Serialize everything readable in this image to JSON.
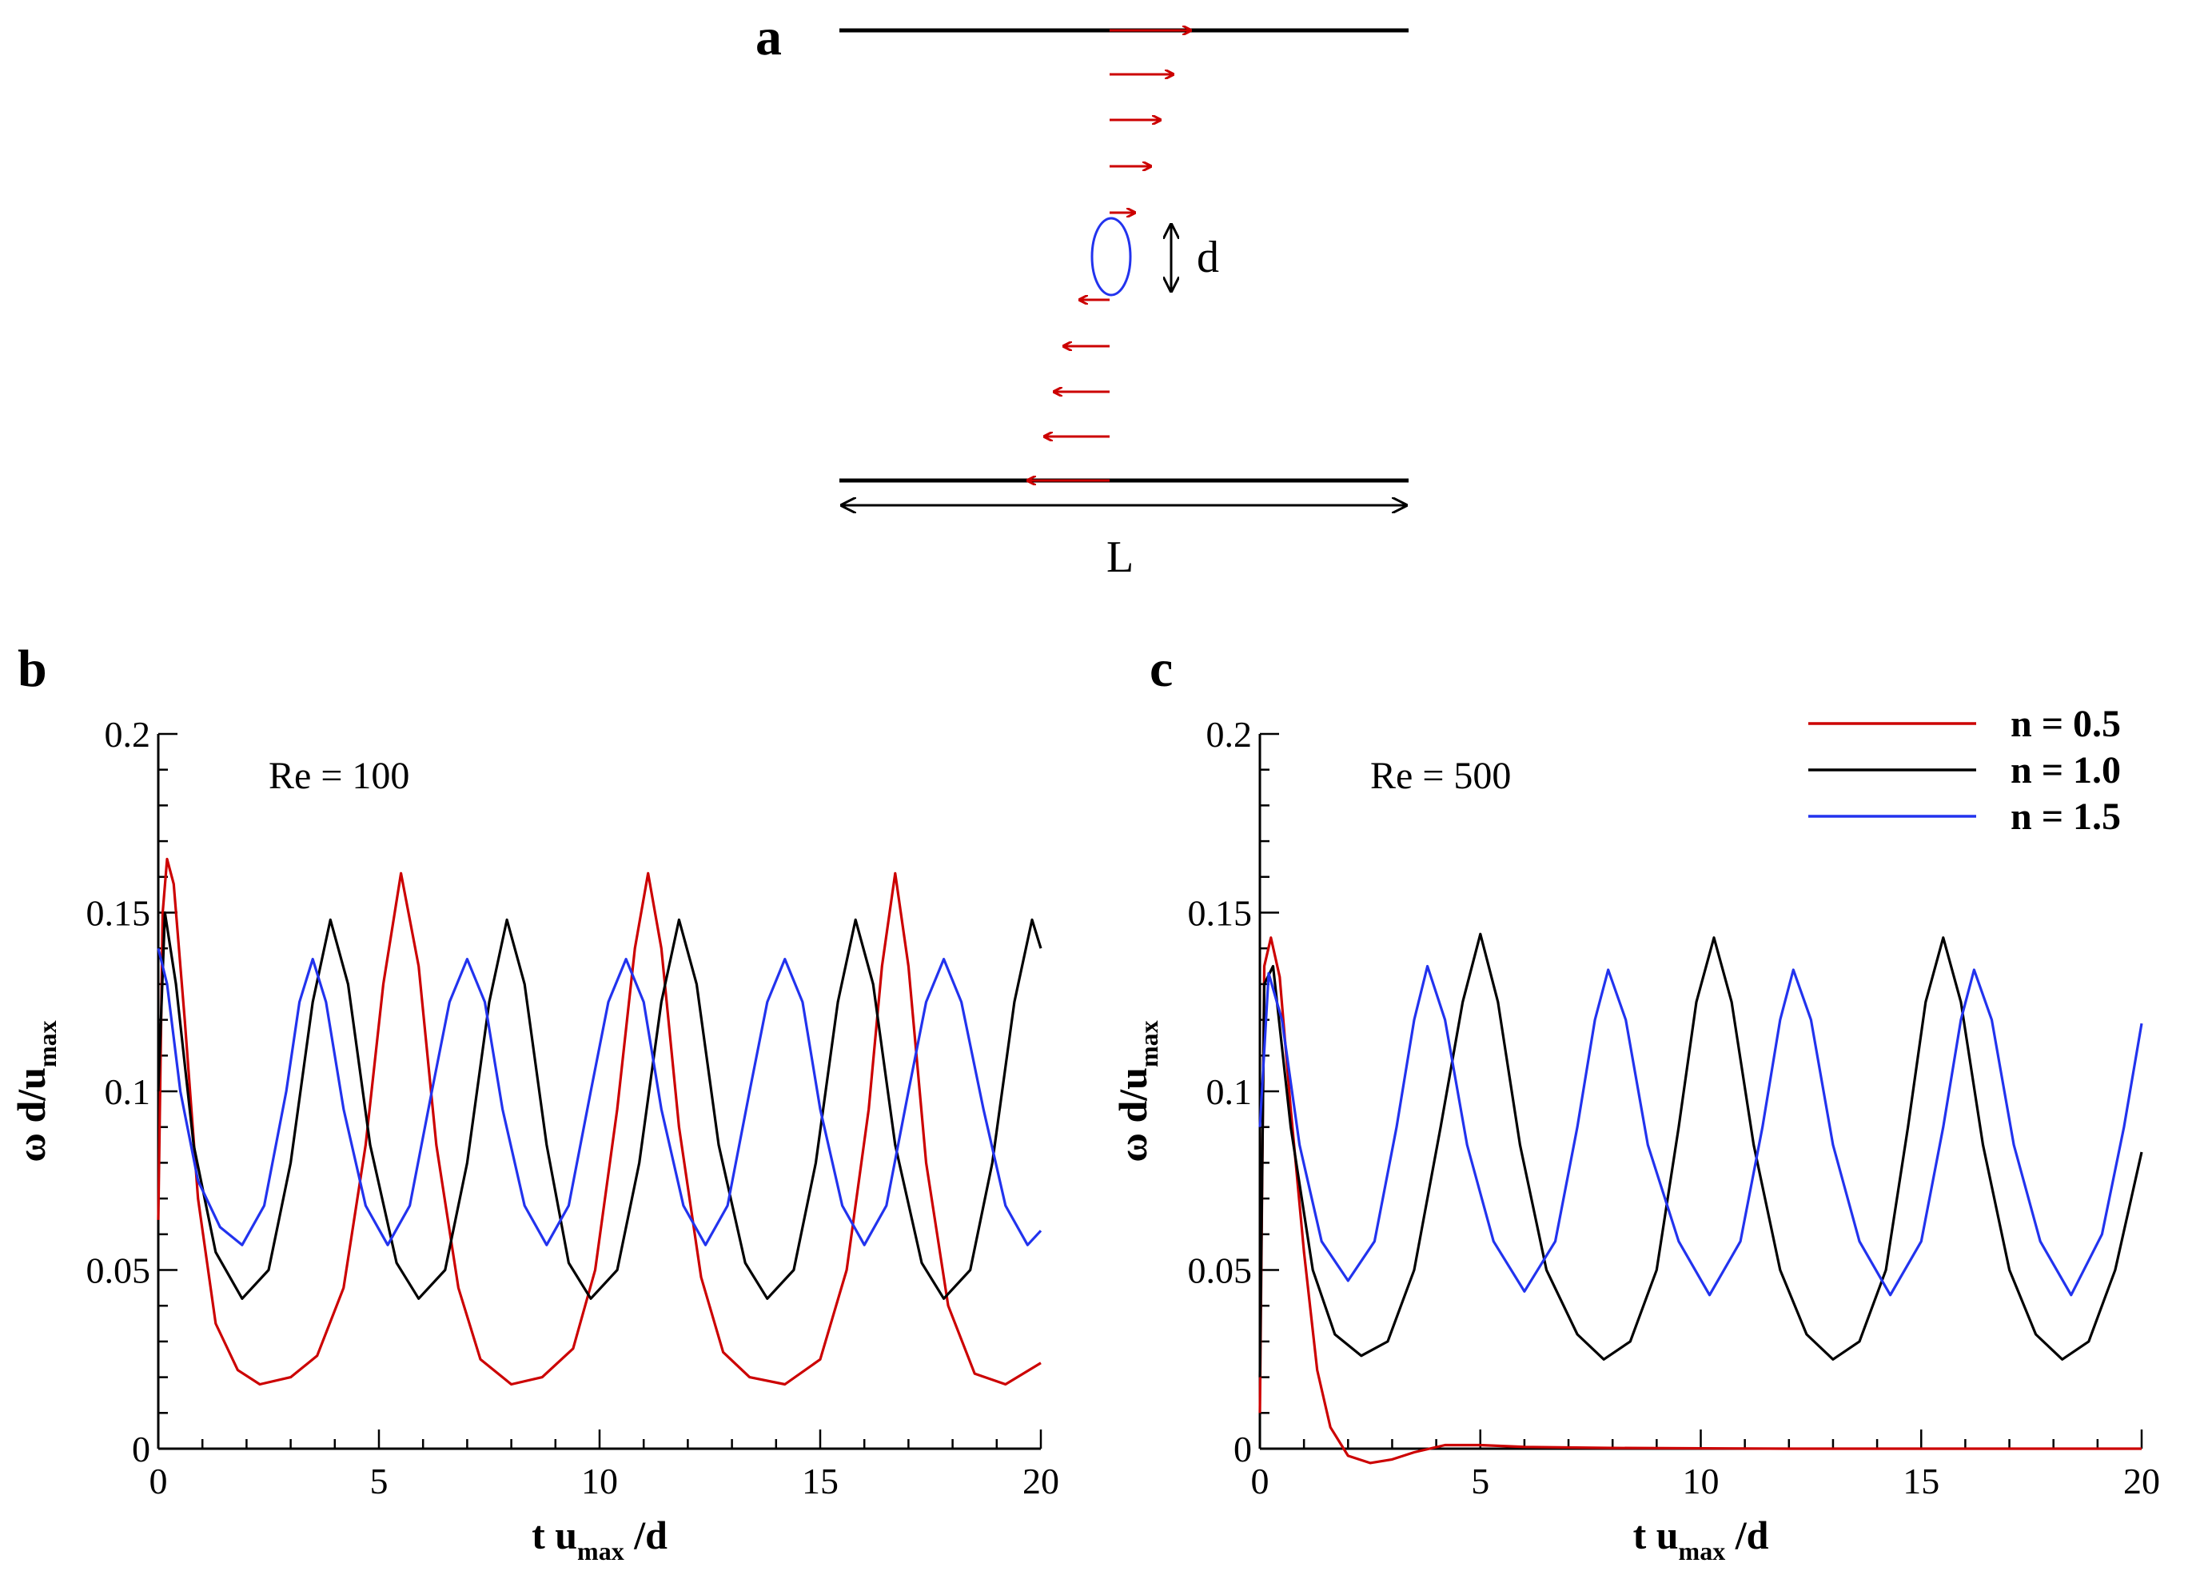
{
  "panels": {
    "a": "a",
    "b": "b",
    "c": "c"
  },
  "schematic": {
    "diameter_label": "d",
    "length_label": "L"
  },
  "legend": [
    {
      "label": "n = 0.5",
      "color": "#cc0000"
    },
    {
      "label": "n = 1.0",
      "color": "#000000"
    },
    {
      "label": "n = 1.5",
      "color": "#2233ee"
    }
  ],
  "chart_data": [
    {
      "type": "line",
      "panel": "b",
      "annotation": "Re = 100",
      "xlabel": {
        "main": "t u",
        "sub": "max",
        "tail": " /d"
      },
      "ylabel": {
        "main": "ω d/u",
        "sub": "max"
      },
      "xlim": [
        0,
        20
      ],
      "ylim": [
        0,
        0.2
      ],
      "xticks": [
        0,
        5,
        10,
        15,
        20
      ],
      "xtick_labels": [
        "0",
        "5",
        "10",
        "15",
        "20"
      ],
      "yticks": [
        0,
        0.05,
        0.1,
        0.15,
        0.2
      ],
      "ytick_labels": [
        "0",
        "0.05",
        "0.1",
        "0.15",
        "0.2"
      ],
      "series": [
        {
          "name": "n = 0.5",
          "color": "#cc0000",
          "x": [
            0,
            0.1,
            0.2,
            0.35,
            0.6,
            0.9,
            1.3,
            1.8,
            2.3,
            3.0,
            3.6,
            4.2,
            4.7,
            5.1,
            5.5,
            5.9,
            6.3,
            6.8,
            7.3,
            8.0,
            8.7,
            9.4,
            9.9,
            10.4,
            10.8,
            11.1,
            11.4,
            11.8,
            12.3,
            12.8,
            13.4,
            14.2,
            15.0,
            15.6,
            16.1,
            16.4,
            16.7,
            17.0,
            17.4,
            17.9,
            18.5,
            19.2,
            20.0
          ],
          "y": [
            0.064,
            0.15,
            0.165,
            0.158,
            0.12,
            0.07,
            0.035,
            0.022,
            0.018,
            0.02,
            0.026,
            0.045,
            0.085,
            0.13,
            0.161,
            0.135,
            0.085,
            0.045,
            0.025,
            0.018,
            0.02,
            0.028,
            0.05,
            0.095,
            0.14,
            0.161,
            0.14,
            0.09,
            0.048,
            0.027,
            0.02,
            0.018,
            0.025,
            0.05,
            0.095,
            0.135,
            0.161,
            0.135,
            0.08,
            0.04,
            0.021,
            0.018,
            0.024
          ]
        },
        {
          "name": "n = 1.0",
          "color": "#000000",
          "x": [
            0,
            0.15,
            0.4,
            0.8,
            1.3,
            1.9,
            2.5,
            3.0,
            3.5,
            3.9,
            4.3,
            4.8,
            5.4,
            5.9,
            6.5,
            7.0,
            7.5,
            7.9,
            8.3,
            8.8,
            9.3,
            9.8,
            10.4,
            10.9,
            11.4,
            11.8,
            12.2,
            12.7,
            13.3,
            13.8,
            14.4,
            14.9,
            15.4,
            15.8,
            16.2,
            16.7,
            17.3,
            17.8,
            18.4,
            18.9,
            19.4,
            19.8,
            20.0
          ],
          "y": [
            0.1,
            0.15,
            0.13,
            0.085,
            0.055,
            0.042,
            0.05,
            0.08,
            0.125,
            0.148,
            0.13,
            0.085,
            0.052,
            0.042,
            0.05,
            0.08,
            0.125,
            0.148,
            0.13,
            0.085,
            0.052,
            0.042,
            0.05,
            0.08,
            0.125,
            0.148,
            0.13,
            0.085,
            0.052,
            0.042,
            0.05,
            0.08,
            0.125,
            0.148,
            0.13,
            0.085,
            0.052,
            0.042,
            0.05,
            0.08,
            0.125,
            0.148,
            0.14
          ]
        },
        {
          "name": "n = 1.5",
          "color": "#2233ee",
          "x": [
            0,
            0.2,
            0.5,
            0.9,
            1.4,
            1.9,
            2.4,
            2.9,
            3.2,
            3.5,
            3.8,
            4.2,
            4.7,
            5.2,
            5.7,
            6.2,
            6.6,
            7.0,
            7.4,
            7.8,
            8.3,
            8.8,
            9.3,
            9.8,
            10.2,
            10.6,
            11.0,
            11.4,
            11.9,
            12.4,
            12.9,
            13.4,
            13.8,
            14.2,
            14.6,
            15.0,
            15.5,
            16.0,
            16.5,
            17.0,
            17.4,
            17.8,
            18.2,
            18.7,
            19.2,
            19.7,
            20.0
          ],
          "y": [
            0.14,
            0.13,
            0.1,
            0.075,
            0.062,
            0.057,
            0.068,
            0.1,
            0.125,
            0.137,
            0.125,
            0.095,
            0.068,
            0.057,
            0.068,
            0.1,
            0.125,
            0.137,
            0.125,
            0.095,
            0.068,
            0.057,
            0.068,
            0.1,
            0.125,
            0.137,
            0.125,
            0.095,
            0.068,
            0.057,
            0.068,
            0.1,
            0.125,
            0.137,
            0.125,
            0.095,
            0.068,
            0.057,
            0.068,
            0.1,
            0.125,
            0.137,
            0.125,
            0.095,
            0.068,
            0.057,
            0.061
          ]
        }
      ]
    },
    {
      "type": "line",
      "panel": "c",
      "annotation": "Re = 500",
      "xlabel": {
        "main": "t u",
        "sub": "max",
        "tail": " /d"
      },
      "ylabel": {
        "main": "ω d/u",
        "sub": "max"
      },
      "xlim": [
        0,
        20
      ],
      "ylim": [
        0,
        0.2
      ],
      "xticks": [
        0,
        5,
        10,
        15,
        20
      ],
      "xtick_labels": [
        "0",
        "5",
        "10",
        "15",
        "20"
      ],
      "yticks": [
        0,
        0.05,
        0.1,
        0.15,
        0.2
      ],
      "ytick_labels": [
        "0",
        "0.05",
        "0.1",
        "0.15",
        "0.2"
      ],
      "series": [
        {
          "name": "n = 0.5",
          "color": "#cc0000",
          "x": [
            0,
            0.1,
            0.25,
            0.45,
            0.7,
            1.0,
            1.3,
            1.6,
            2.0,
            2.5,
            3.0,
            3.5,
            4.2,
            5.0,
            6.0,
            8.0,
            12.0,
            16.0,
            20.0
          ],
          "y": [
            0.01,
            0.135,
            0.143,
            0.132,
            0.095,
            0.055,
            0.022,
            0.006,
            -0.002,
            -0.004,
            -0.003,
            -0.001,
            0.001,
            0.001,
            0.0005,
            0.0002,
            0.0,
            0.0,
            0.0
          ]
        },
        {
          "name": "n = 1.0",
          "color": "#000000",
          "x": [
            0,
            0.1,
            0.3,
            0.7,
            1.2,
            1.7,
            2.3,
            2.9,
            3.5,
            4.1,
            4.6,
            5.0,
            5.4,
            5.9,
            6.5,
            7.2,
            7.8,
            8.4,
            9.0,
            9.5,
            9.9,
            10.3,
            10.7,
            11.2,
            11.8,
            12.4,
            13.0,
            13.6,
            14.2,
            14.7,
            15.1,
            15.5,
            15.9,
            16.4,
            17.0,
            17.6,
            18.2,
            18.8,
            19.4,
            20.0
          ],
          "y": [
            0.02,
            0.13,
            0.135,
            0.09,
            0.05,
            0.032,
            0.026,
            0.03,
            0.05,
            0.09,
            0.125,
            0.144,
            0.125,
            0.085,
            0.05,
            0.032,
            0.025,
            0.03,
            0.05,
            0.09,
            0.125,
            0.143,
            0.125,
            0.085,
            0.05,
            0.032,
            0.025,
            0.03,
            0.05,
            0.09,
            0.125,
            0.143,
            0.125,
            0.085,
            0.05,
            0.032,
            0.025,
            0.03,
            0.05,
            0.083
          ]
        },
        {
          "name": "n = 1.5",
          "color": "#2233ee",
          "x": [
            0,
            0.2,
            0.5,
            0.9,
            1.4,
            2.0,
            2.6,
            3.1,
            3.5,
            3.8,
            4.2,
            4.7,
            5.3,
            6.0,
            6.7,
            7.2,
            7.6,
            7.9,
            8.3,
            8.8,
            9.5,
            10.2,
            10.9,
            11.4,
            11.8,
            12.1,
            12.5,
            13.0,
            13.6,
            14.3,
            15.0,
            15.5,
            15.9,
            16.2,
            16.6,
            17.1,
            17.7,
            18.4,
            19.1,
            19.6,
            20.0
          ],
          "y": [
            0.09,
            0.133,
            0.12,
            0.085,
            0.058,
            0.047,
            0.058,
            0.09,
            0.12,
            0.135,
            0.12,
            0.085,
            0.058,
            0.044,
            0.058,
            0.09,
            0.12,
            0.134,
            0.12,
            0.085,
            0.058,
            0.043,
            0.058,
            0.09,
            0.12,
            0.134,
            0.12,
            0.085,
            0.058,
            0.043,
            0.058,
            0.09,
            0.12,
            0.134,
            0.12,
            0.085,
            0.058,
            0.043,
            0.06,
            0.09,
            0.119
          ]
        }
      ]
    }
  ]
}
